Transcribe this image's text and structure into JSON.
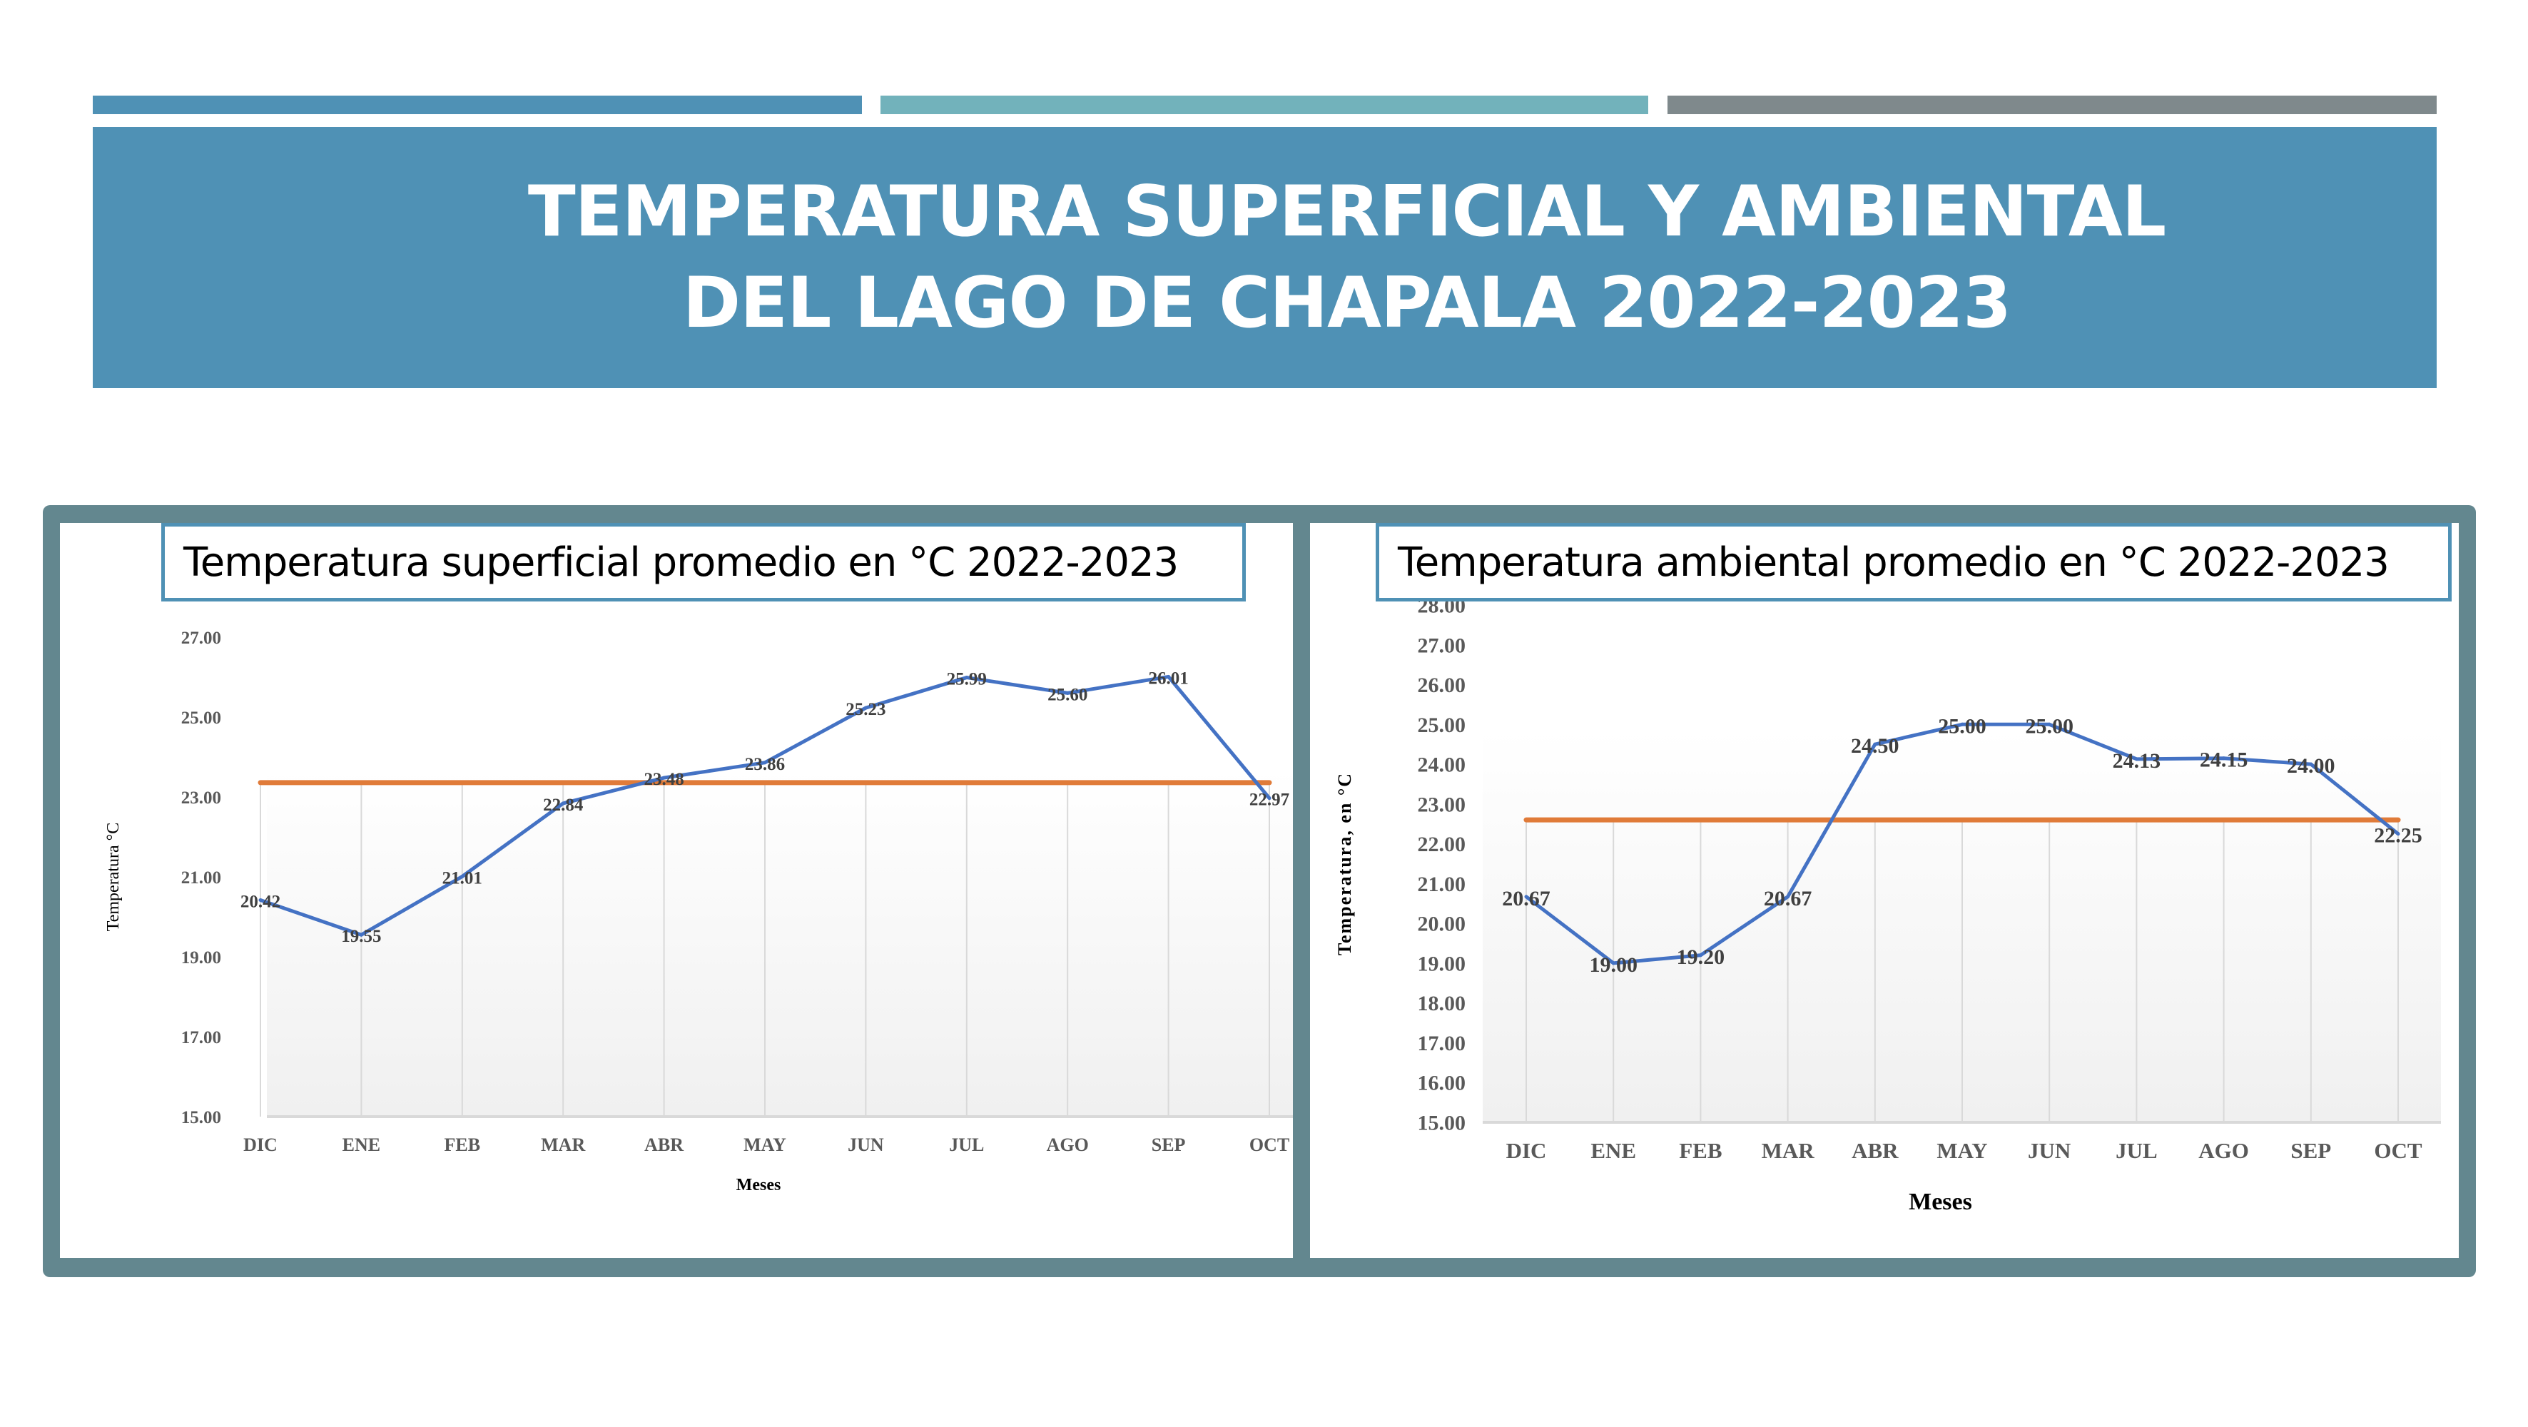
{
  "header": {
    "bars": [
      {
        "name": "accent-bar-blue",
        "color": "#4f91b5"
      },
      {
        "name": "accent-bar-teal",
        "color": "#72b2bb"
      },
      {
        "name": "accent-bar-gray",
        "color": "#7f898c"
      }
    ],
    "title": "TEMPERATURA SUPERFICIAL Y AMBIENTAL\nDEL LAGO DE CHAPALA 2022-2023",
    "banner_color": "#4f91b5"
  },
  "colors": {
    "series": "#4472c4",
    "average": "#e07b39",
    "frame": "#63878f",
    "title_border": "#4f91b5"
  },
  "chart_data": [
    {
      "type": "line",
      "title": "Temperatura superficial promedio en °C 2022-2023",
      "xlabel": "Meses",
      "ylabel": "Temperatura  °C",
      "categories": [
        "DIC",
        "ENE",
        "FEB",
        "MAR",
        "ABR",
        "MAY",
        "JUN",
        "JUL",
        "AGO",
        "SEP",
        "OCT"
      ],
      "ylim": [
        15,
        27
      ],
      "yticks": [
        "15.00",
        "17.00",
        "19.00",
        "21.00",
        "23.00",
        "25.00",
        "27.00"
      ],
      "grid": "vertical",
      "series": [
        {
          "name": "Temperatura superficial",
          "values": [
            20.42,
            19.55,
            21.01,
            22.84,
            23.48,
            23.86,
            25.23,
            25.99,
            25.6,
            26.01,
            22.97
          ],
          "labels": [
            "20.42",
            "19.55",
            "21.01",
            "22.84",
            "23.48",
            "23.86",
            "25.23",
            "25.99",
            "25.60",
            "26.01",
            "22.97"
          ]
        },
        {
          "name": "Promedio",
          "values": [
            23.36,
            23.36,
            23.36,
            23.36,
            23.36,
            23.36,
            23.36,
            23.36,
            23.36,
            23.36,
            23.36
          ]
        }
      ]
    },
    {
      "type": "line",
      "title": "Temperatura ambiental promedio en °C 2022-2023",
      "xlabel": "Meses",
      "ylabel": "Temperatura, en °C",
      "categories": [
        "DIC",
        "ENE",
        "FEB",
        "MAR",
        "ABR",
        "MAY",
        "JUN",
        "JUL",
        "AGO",
        "SEP",
        "OCT"
      ],
      "ylim": [
        15,
        28
      ],
      "yticks": [
        "15.00",
        "16.00",
        "17.00",
        "18.00",
        "19.00",
        "20.00",
        "21.00",
        "22.00",
        "23.00",
        "24.00",
        "25.00",
        "26.00",
        "27.00",
        "28.00"
      ],
      "grid": "vertical",
      "series": [
        {
          "name": "Temperatura ambiental",
          "values": [
            20.67,
            19.0,
            19.2,
            20.67,
            24.5,
            25.0,
            25.0,
            24.13,
            24.15,
            24.0,
            22.25
          ],
          "labels": [
            "20.67",
            "19.00",
            "19.20",
            "20.67",
            "24.50",
            "25.00",
            "25.00",
            "24.13",
            "24.15",
            "24.00",
            "22.25"
          ]
        },
        {
          "name": "Promedio",
          "values": [
            22.6,
            22.6,
            22.6,
            22.6,
            22.6,
            22.6,
            22.6,
            22.6,
            22.6,
            22.6,
            22.6
          ]
        }
      ]
    }
  ]
}
